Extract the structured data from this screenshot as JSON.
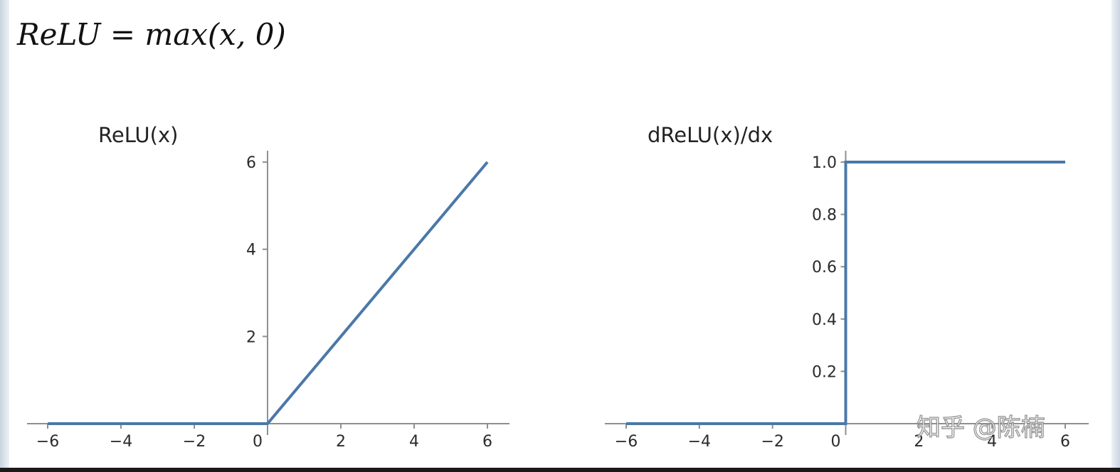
{
  "formula": "ReLU = max(x, 0)",
  "watermark": "知乎 @陈楠",
  "colors": {
    "line": "#4a78a8",
    "axis": "#8f8f8f",
    "text": "#2b2b2b"
  },
  "chart_data": [
    {
      "type": "line",
      "title": "ReLU(x)",
      "xlim": [
        -6,
        6
      ],
      "ylim": [
        0,
        6
      ],
      "x_ticks": [
        "−6",
        "−4",
        "−2",
        "0",
        "2",
        "4",
        "6"
      ],
      "y_ticks": [
        "2",
        "4",
        "6"
      ],
      "grid": false,
      "series": [
        {
          "x": [
            -6,
            0,
            6
          ],
          "y": [
            0,
            0,
            6
          ]
        }
      ]
    },
    {
      "type": "line",
      "title": "dReLU(x)/dx",
      "xlim": [
        -6,
        6
      ],
      "ylim": [
        0,
        1.0
      ],
      "x_ticks": [
        "−6",
        "−4",
        "−2",
        "0",
        "2",
        "4",
        "6"
      ],
      "y_ticks": [
        "0.2",
        "0.4",
        "0.6",
        "0.8",
        "1.0"
      ],
      "grid": false,
      "series": [
        {
          "x": [
            -6,
            0,
            0,
            6
          ],
          "y": [
            0,
            0,
            1,
            1
          ]
        }
      ]
    }
  ]
}
